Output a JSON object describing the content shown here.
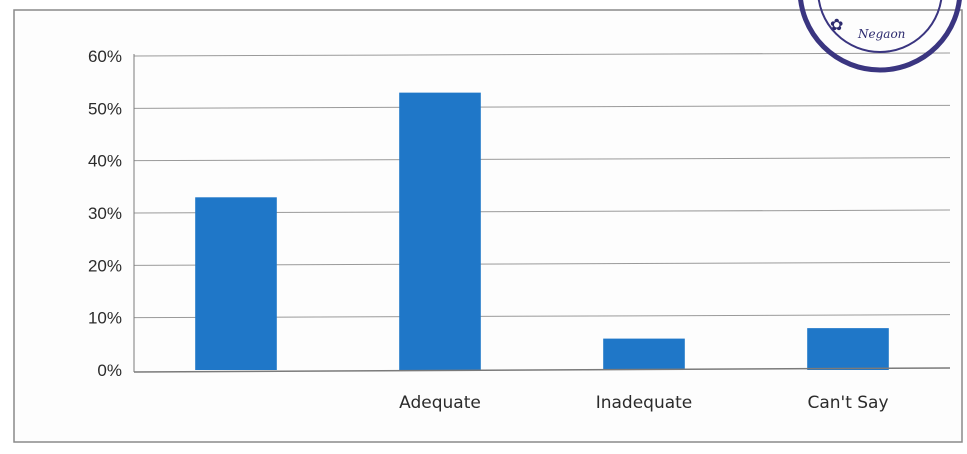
{
  "chart_data": {
    "type": "bar",
    "title": "",
    "xlabel": "",
    "ylabel": "",
    "categories": [
      "",
      "Adequate",
      "Inadequate",
      "Can't Say"
    ],
    "values": [
      33,
      53,
      6,
      8
    ],
    "ylim": [
      0,
      60
    ],
    "yticks": [
      "0%",
      "10%",
      "20%",
      "30%",
      "40%",
      "50%",
      "60%"
    ],
    "grid": true,
    "legend": "none",
    "bar_color": "#1f77c8"
  },
  "stamp": {
    "text": "Negaon",
    "color": "#2c2a6e"
  }
}
